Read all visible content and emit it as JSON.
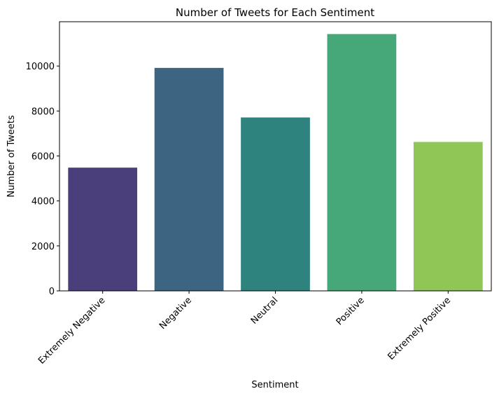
{
  "chart_data": {
    "type": "bar",
    "title": "Number of Tweets for Each Sentiment",
    "xlabel": "Sentiment",
    "ylabel": "Number of Tweets",
    "categories": [
      "Extremely Negative",
      "Negative",
      "Neutral",
      "Positive",
      "Extremely Positive"
    ],
    "values": [
      5481,
      9917,
      7713,
      11422,
      6624
    ],
    "colors": [
      "#4a3f7a",
      "#3d6582",
      "#2e837f",
      "#46a878",
      "#8fc656"
    ],
    "yticks": [
      0,
      2000,
      4000,
      6000,
      8000,
      10000
    ],
    "ylim": [
      0,
      12000
    ],
    "xtick_rotation": 45,
    "grid": false,
    "legend": "none"
  }
}
